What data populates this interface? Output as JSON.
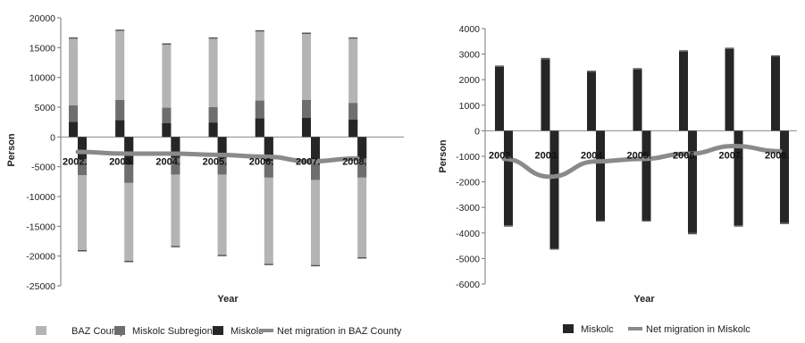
{
  "colors": {
    "baz_county": "#b4b4b4",
    "miskolc_subregion": "#6e6e6e",
    "miskolc": "#262626",
    "net_migration": "#8a8a8a"
  },
  "chart_data": [
    {
      "type": "bar",
      "stacked": true,
      "categories": [
        "2002.",
        "2003.",
        "2004.",
        "2005.",
        "2006.",
        "2007.",
        "2008."
      ],
      "xlabel": "Year",
      "ylabel": "Person",
      "ylim": [
        -25000,
        20000
      ],
      "yticks": [
        20000,
        15000,
        10000,
        5000,
        0,
        -5000,
        -10000,
        -15000,
        -20000,
        -25000
      ],
      "grid": false,
      "legend_position": "bottom",
      "series": [
        {
          "name": "BAZ County",
          "kind": "bar",
          "color_key": "baz_county",
          "positive": [
            16500,
            17800,
            15500,
            16500,
            17700,
            17300,
            16500
          ],
          "negative": [
            -19000,
            -20800,
            -18300,
            -19800,
            -21300,
            -21500,
            -20200
          ]
        },
        {
          "name": "Miskolc Subregion",
          "kind": "bar",
          "color_key": "miskolc_subregion",
          "positive": [
            5300,
            6200,
            4900,
            5000,
            6100,
            6200,
            5700
          ],
          "negative": [
            -6400,
            -7700,
            -6300,
            -6300,
            -6800,
            -7200,
            -6800
          ]
        },
        {
          "name": "Miskolc",
          "kind": "bar",
          "color_key": "miskolc",
          "positive": [
            2500,
            2800,
            2300,
            2400,
            3100,
            3200,
            2900
          ],
          "negative": [
            -3700,
            -4600,
            -3500,
            -3500,
            -4000,
            -3700,
            -3600
          ]
        },
        {
          "name": "Net migration in BAZ County",
          "kind": "line",
          "color_key": "net_migration",
          "values": [
            -2500,
            -2800,
            -2800,
            -3000,
            -3300,
            -4100,
            -3600
          ]
        }
      ]
    },
    {
      "type": "bar",
      "categories": [
        "2002.",
        "2003.",
        "2004.",
        "2005.",
        "2006.",
        "2007.",
        "2008."
      ],
      "xlabel": "Year",
      "ylabel": "Person",
      "ylim": [
        -6000,
        4000
      ],
      "yticks": [
        4000,
        3000,
        2000,
        1000,
        0,
        -1000,
        -2000,
        -3000,
        -4000,
        -5000,
        -6000
      ],
      "grid": false,
      "legend_position": "bottom",
      "series": [
        {
          "name": "Miskolc",
          "kind": "bar",
          "color_key": "miskolc",
          "positive": [
            2500,
            2800,
            2300,
            2400,
            3100,
            3200,
            2900
          ],
          "negative": [
            -3700,
            -4600,
            -3500,
            -3500,
            -4000,
            -3700,
            -3600
          ]
        },
        {
          "name": "Net migration in Miskolc",
          "kind": "line",
          "color_key": "net_migration",
          "values": [
            -1100,
            -1800,
            -1200,
            -1100,
            -900,
            -600,
            -800
          ]
        }
      ]
    }
  ]
}
